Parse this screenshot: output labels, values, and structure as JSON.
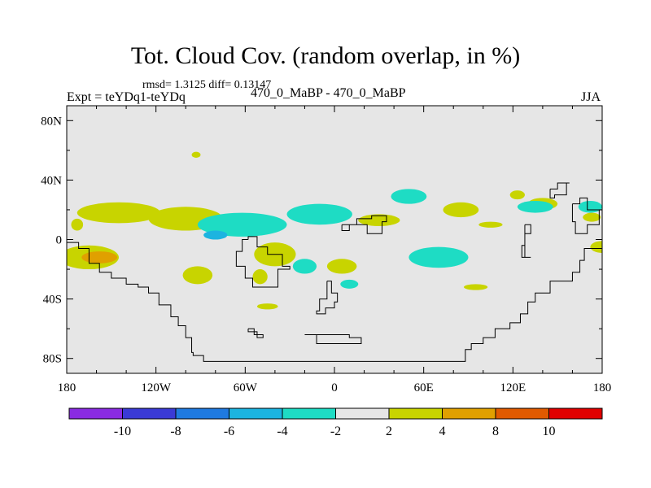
{
  "chart_data": {
    "type": "heatmap",
    "title": "Tot. Cloud Cov. (random overlap, in %)",
    "stats": "rmsd= 1.3125 diff= 0.13147",
    "left_label": "Expt = teYDq1-teYDq",
    "center_label": "470_0_MaBP - 470_0_MaBP",
    "right_label": "JJA",
    "x_axis": {
      "range": [
        -180,
        180
      ],
      "ticks": [
        {
          "value": -180,
          "label": "180"
        },
        {
          "value": -120,
          "label": "120W"
        },
        {
          "value": -60,
          "label": "60W"
        },
        {
          "value": 0,
          "label": "0"
        },
        {
          "value": 60,
          "label": "60E"
        },
        {
          "value": 120,
          "label": "120E"
        },
        {
          "value": 180,
          "label": "180"
        }
      ]
    },
    "y_axis": {
      "range": [
        -90,
        90
      ],
      "ticks": [
        {
          "value": 80,
          "label": "80N"
        },
        {
          "value": 40,
          "label": "40N"
        },
        {
          "value": 0,
          "label": "0"
        },
        {
          "value": -40,
          "label": "40S"
        },
        {
          "value": -80,
          "label": "80S"
        }
      ]
    },
    "colorbar": {
      "colors": [
        "#8a2be2",
        "#3a3ad6",
        "#1f7ae0",
        "#1cb4e0",
        "#1edcc4",
        "#e6e6e6",
        "#c8d400",
        "#e0a000",
        "#e05a00",
        "#e00000"
      ],
      "labels": [
        "-10",
        "-8",
        "-6",
        "-4",
        "-2",
        "2",
        "4",
        "8",
        "10"
      ]
    },
    "background_color": "#e6e6e6",
    "anomaly_regions": [
      {
        "level": "2 to 4",
        "color": "#c8d400",
        "lon": -145,
        "lat": 18,
        "rx": 28,
        "ry": 7
      },
      {
        "level": "2 to 4",
        "color": "#c8d400",
        "lon": -100,
        "lat": 14,
        "rx": 25,
        "ry": 8
      },
      {
        "level": "2 to 4",
        "color": "#c8d400",
        "lon": -165,
        "lat": -12,
        "rx": 20,
        "ry": 8
      },
      {
        "level": "4 to 8",
        "color": "#e0a000",
        "lon": -158,
        "lat": -12,
        "rx": 12,
        "ry": 4
      },
      {
        "level": "2 to 4",
        "color": "#c8d400",
        "lon": -173,
        "lat": 10,
        "rx": 4,
        "ry": 4
      },
      {
        "level": "2 to 4",
        "color": "#c8d400",
        "lon": -92,
        "lat": -24,
        "rx": 10,
        "ry": 6
      },
      {
        "level": "2 to 4",
        "color": "#c8d400",
        "lon": -40,
        "lat": -10,
        "rx": 14,
        "ry": 8
      },
      {
        "level": "2 to 4",
        "color": "#c8d400",
        "lon": -50,
        "lat": -25,
        "rx": 5,
        "ry": 5
      },
      {
        "level": "2 to 4",
        "color": "#c8d400",
        "lon": 5,
        "lat": -18,
        "rx": 10,
        "ry": 5
      },
      {
        "level": "2 to 4",
        "color": "#c8d400",
        "lon": 30,
        "lat": 13,
        "rx": 14,
        "ry": 4
      },
      {
        "level": "2 to 4",
        "color": "#c8d400",
        "lon": 85,
        "lat": 20,
        "rx": 12,
        "ry": 5
      },
      {
        "level": "2 to 4",
        "color": "#c8d400",
        "lon": 105,
        "lat": 10,
        "rx": 8,
        "ry": 2
      },
      {
        "level": "2 to 4",
        "color": "#c8d400",
        "lon": 123,
        "lat": 30,
        "rx": 5,
        "ry": 3
      },
      {
        "level": "2 to 4",
        "color": "#c8d400",
        "lon": 140,
        "lat": 24,
        "rx": 10,
        "ry": 4
      },
      {
        "level": "2 to 4",
        "color": "#c8d400",
        "lon": 173,
        "lat": 15,
        "rx": 6,
        "ry": 3
      },
      {
        "level": "2 to 4",
        "color": "#c8d400",
        "lon": 180,
        "lat": -5,
        "rx": 8,
        "ry": 4
      },
      {
        "level": "2 to 4",
        "color": "#c8d400",
        "lon": -45,
        "lat": -45,
        "rx": 7,
        "ry": 2
      },
      {
        "level": "2 to 4",
        "color": "#c8d400",
        "lon": 95,
        "lat": -32,
        "rx": 8,
        "ry": 2
      },
      {
        "level": "2 to 4",
        "color": "#c8d400",
        "lon": -93,
        "lat": 57,
        "rx": 3,
        "ry": 2
      },
      {
        "level": "-2 to -4",
        "color": "#1edcc4",
        "lon": -62,
        "lat": 10,
        "rx": 30,
        "ry": 8
      },
      {
        "level": "-2 to -4",
        "color": "#1edcc4",
        "lon": -10,
        "lat": 17,
        "rx": 22,
        "ry": 7
      },
      {
        "level": "-4 to -6",
        "color": "#1cb4e0",
        "lon": -80,
        "lat": 3,
        "rx": 8,
        "ry": 3
      },
      {
        "level": "-2 to -4",
        "color": "#1edcc4",
        "lon": 50,
        "lat": 29,
        "rx": 12,
        "ry": 5
      },
      {
        "level": "-2 to -4",
        "color": "#1edcc4",
        "lon": 70,
        "lat": -12,
        "rx": 20,
        "ry": 7
      },
      {
        "level": "-2 to -4",
        "color": "#1edcc4",
        "lon": -20,
        "lat": -18,
        "rx": 8,
        "ry": 5
      },
      {
        "level": "-2 to -4",
        "color": "#1edcc4",
        "lon": 10,
        "lat": -30,
        "rx": 6,
        "ry": 3
      },
      {
        "level": "-2 to -4",
        "color": "#1edcc4",
        "lon": 135,
        "lat": 22,
        "rx": 12,
        "ry": 4
      },
      {
        "level": "-2 to -4",
        "color": "#1edcc4",
        "lon": 172,
        "lat": 22,
        "rx": 8,
        "ry": 4
      }
    ],
    "coastlines": [
      {
        "name": "americas",
        "points": [
          [
            -180,
            -2
          ],
          [
            -172,
            -6
          ],
          [
            -165,
            -16
          ],
          [
            -158,
            -22
          ],
          [
            -150,
            -26
          ],
          [
            -140,
            -30
          ],
          [
            -132,
            -32
          ],
          [
            -125,
            -36
          ],
          [
            -118,
            -44
          ],
          [
            -110,
            -52
          ],
          [
            -105,
            -58
          ],
          [
            -100,
            -66
          ],
          [
            -96,
            -76
          ],
          [
            -95,
            -78
          ],
          [
            -88,
            -82
          ],
          [
            88,
            -82
          ],
          [
            88,
            -74
          ],
          [
            92,
            -70
          ],
          [
            100,
            -66
          ],
          [
            108,
            -60
          ],
          [
            118,
            -56
          ],
          [
            125,
            -50
          ],
          [
            130,
            -42
          ],
          [
            135,
            -36
          ],
          [
            145,
            -28
          ],
          [
            160,
            -22
          ],
          [
            165,
            -14
          ],
          [
            168,
            -6
          ],
          [
            180,
            -6
          ]
        ]
      },
      {
        "name": "africa",
        "points": [
          [
            -58,
            0
          ],
          [
            -62,
            -8
          ],
          [
            -66,
            -18
          ],
          [
            -60,
            -26
          ],
          [
            -55,
            -32
          ],
          [
            -42,
            -32
          ],
          [
            -38,
            -20
          ],
          [
            -30,
            -18
          ],
          [
            -35,
            -10
          ],
          [
            -45,
            -5
          ],
          [
            -52,
            2
          ],
          [
            -58,
            0
          ]
        ]
      },
      {
        "name": "madagascar",
        "points": [
          [
            -5,
            -28
          ],
          [
            -2,
            -36
          ],
          [
            2,
            -42
          ],
          [
            0,
            -46
          ],
          [
            -6,
            -50
          ],
          [
            -12,
            -48
          ],
          [
            -10,
            -40
          ],
          [
            -5,
            -28
          ]
        ]
      },
      {
        "name": "india",
        "points": [
          [
            5,
            10
          ],
          [
            15,
            14
          ],
          [
            25,
            16
          ],
          [
            35,
            12
          ],
          [
            32,
            4
          ],
          [
            22,
            10
          ],
          [
            10,
            6
          ],
          [
            5,
            10
          ]
        ]
      },
      {
        "name": "southeast-asia",
        "points": [
          [
            128,
            10
          ],
          [
            132,
            4
          ],
          [
            128,
            -4
          ],
          [
            126,
            -12
          ],
          [
            132,
            -12
          ],
          [
            128,
            10
          ]
        ]
      },
      {
        "name": "japan",
        "points": [
          [
            145,
            34
          ],
          [
            150,
            38
          ],
          [
            158,
            38
          ],
          [
            156,
            30
          ],
          [
            148,
            28
          ],
          [
            145,
            34
          ]
        ]
      },
      {
        "name": "east-asia",
        "points": [
          [
            160,
            24
          ],
          [
            165,
            28
          ],
          [
            170,
            20
          ],
          [
            180,
            20
          ],
          [
            178,
            10
          ],
          [
            170,
            4
          ],
          [
            162,
            12
          ],
          [
            160,
            24
          ]
        ]
      },
      {
        "name": "island-1",
        "points": [
          [
            -58,
            -60
          ],
          [
            -54,
            -64
          ],
          [
            -48,
            -66
          ],
          [
            -52,
            -62
          ],
          [
            -58,
            -60
          ]
        ]
      },
      {
        "name": "island-2",
        "points": [
          [
            -20,
            -64
          ],
          [
            -12,
            -70
          ],
          [
            10,
            -70
          ],
          [
            18,
            -66
          ],
          [
            10,
            -64
          ],
          [
            -20,
            -64
          ]
        ]
      }
    ]
  }
}
